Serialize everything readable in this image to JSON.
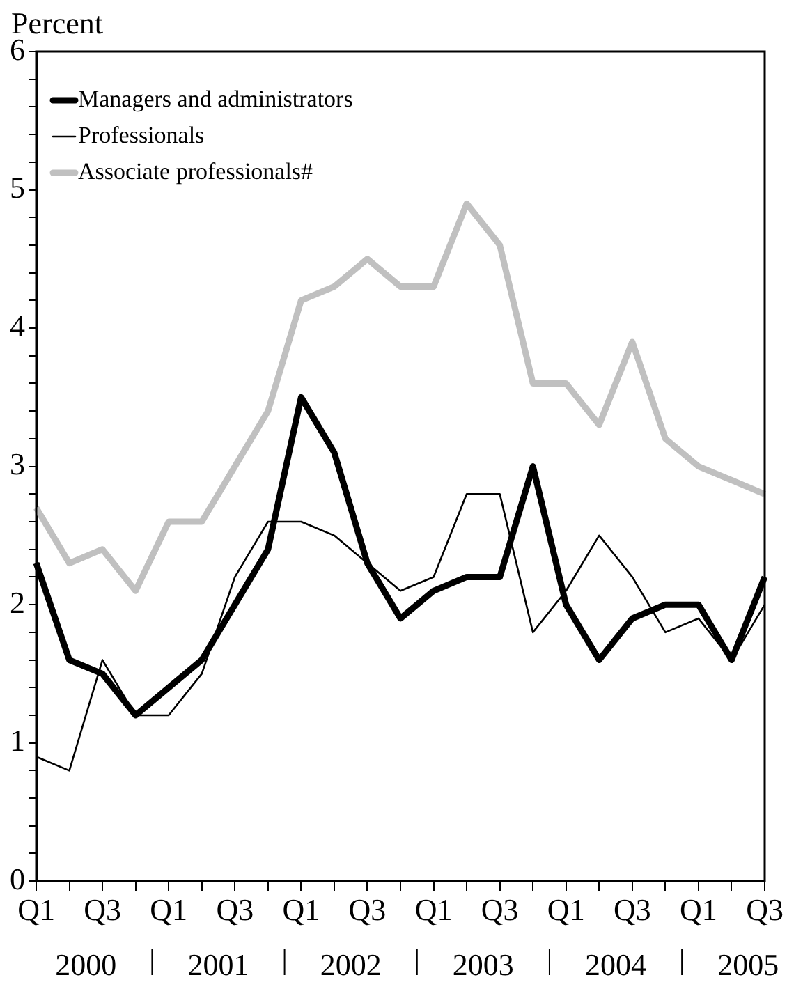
{
  "chart_data": {
    "type": "line",
    "ylabel": "Percent",
    "categories": [
      "Q1",
      null,
      "Q3",
      null,
      "Q1",
      null,
      "Q3",
      null,
      "Q1",
      null,
      "Q3",
      null,
      "Q1",
      null,
      "Q3",
      null,
      "Q1",
      null,
      "Q3",
      null,
      "Q1",
      null,
      "Q3"
    ],
    "annotations": [
      "2000",
      "2001",
      "2002",
      "2003",
      "2004",
      "2005"
    ],
    "series": [
      {
        "name": "Managers and administrators",
        "color": "#000000",
        "values": [
          2.3,
          1.6,
          1.5,
          1.2,
          1.4,
          1.6,
          2.0,
          2.4,
          3.5,
          3.1,
          2.3,
          1.9,
          2.1,
          2.2,
          2.2,
          3.0,
          2.0,
          1.6,
          1.9,
          2.0,
          2.0,
          1.6,
          2.2
        ]
      },
      {
        "name": "Professionals",
        "color": "#000000",
        "values": [
          0.9,
          0.8,
          1.6,
          1.2,
          1.2,
          1.5,
          2.2,
          2.6,
          2.6,
          2.5,
          2.3,
          2.1,
          2.2,
          2.8,
          2.8,
          1.8,
          2.1,
          2.5,
          2.2,
          1.8,
          1.9,
          1.6,
          2.0
        ]
      },
      {
        "name": "Associate professionals#",
        "color": "#c0c0c0",
        "values": [
          2.7,
          2.3,
          2.4,
          2.1,
          2.6,
          2.6,
          3.0,
          3.4,
          4.2,
          4.3,
          4.5,
          4.3,
          4.3,
          4.9,
          4.6,
          3.6,
          3.6,
          3.3,
          3.9,
          3.2,
          3.0,
          2.9,
          2.8
        ]
      }
    ],
    "ylim": [
      0,
      6
    ],
    "yticks": [
      0,
      {
        "value": 0.2,
        "label": null
      },
      {
        "value": 0.4,
        "label": null
      },
      {
        "value": 0.6,
        "label": null
      },
      {
        "value": 0.8,
        "label": null
      },
      1,
      {
        "value": 1.2,
        "label": null
      },
      {
        "value": 1.4,
        "label": null
      },
      {
        "value": 1.6,
        "label": null
      },
      {
        "value": 1.8,
        "label": null
      },
      2,
      {
        "value": 2.2,
        "label": null
      },
      {
        "value": 2.4,
        "label": null
      },
      {
        "value": 2.6,
        "label": null
      },
      {
        "value": 2.8,
        "label": null
      },
      3,
      {
        "value": 3.2,
        "label": null
      },
      {
        "value": 3.4,
        "label": null
      },
      {
        "value": 3.6,
        "label": null
      },
      {
        "value": 3.8,
        "label": null
      },
      4,
      {
        "value": 4.2,
        "label": null
      },
      {
        "value": 4.4,
        "label": null
      },
      {
        "value": 4.6,
        "label": null
      },
      {
        "value": 4.8,
        "label": null
      },
      5,
      {
        "value": 5.2,
        "label": null
      },
      {
        "value": 5.4,
        "label": null
      },
      {
        "value": 5.6,
        "label": null
      },
      {
        "value": 5.8,
        "label": null
      },
      6
    ],
    "grid": false,
    "legend": "top left",
    "marker": "none",
    "line_style": "solid"
  }
}
